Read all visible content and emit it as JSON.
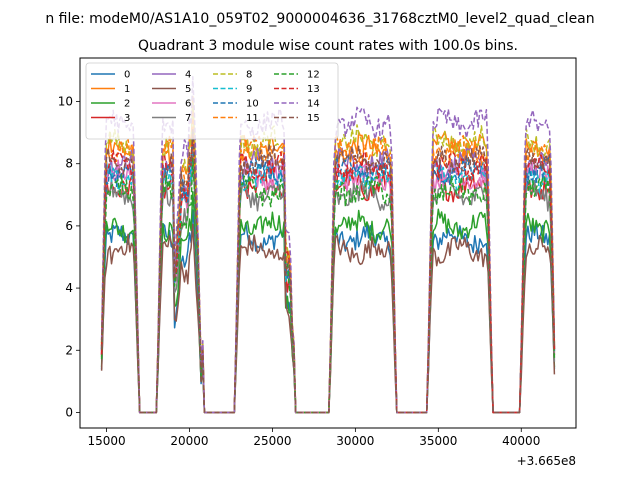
{
  "chart_data": {
    "type": "line",
    "suptitle": "n file: modeM0/AS1A10_059T02_9000004636_31768cztM0_level2_quad_clean",
    "title": "Quadrant 3 module wise count rates with 100.0s bins.",
    "xlabel": "",
    "ylabel": "",
    "x_offset_label": "+3.665e8",
    "xlim": [
      13400,
      43300
    ],
    "ylim": [
      -0.5,
      11.4
    ],
    "xticks": [
      15000,
      20000,
      25000,
      30000,
      35000,
      40000
    ],
    "yticks": [
      0,
      2,
      4,
      6,
      8,
      10
    ],
    "grid": false,
    "legend": {
      "position": "upper-left",
      "columns": 4
    },
    "x_units_note": "seconds, relative to offset 3.665e8",
    "bin_size_s": 100,
    "on_intervals": [
      [
        14700,
        16900
      ],
      [
        18100,
        20800
      ],
      [
        22800,
        26300
      ],
      [
        28500,
        32400
      ],
      [
        34400,
        38200
      ],
      [
        40000,
        42000
      ]
    ],
    "series": [
      {
        "name": "0",
        "color": "#1f77b4",
        "dashed": false,
        "level": 5.6
      },
      {
        "name": "1",
        "color": "#ff7f0e",
        "dashed": false,
        "level": 8.5
      },
      {
        "name": "2",
        "color": "#2ca02c",
        "dashed": false,
        "level": 6.0
      },
      {
        "name": "3",
        "color": "#d62728",
        "dashed": false,
        "level": 7.3
      },
      {
        "name": "4",
        "color": "#9467bd",
        "dashed": false,
        "level": 8.0
      },
      {
        "name": "5",
        "color": "#8c564b",
        "dashed": false,
        "level": 5.2
      },
      {
        "name": "6",
        "color": "#e377c2",
        "dashed": false,
        "level": 7.6
      },
      {
        "name": "7",
        "color": "#7f7f7f",
        "dashed": false,
        "level": 7.0
      },
      {
        "name": "8",
        "color": "#bcbd22",
        "dashed": true,
        "level": 8.7
      },
      {
        "name": "9",
        "color": "#17becf",
        "dashed": true,
        "level": 7.6
      },
      {
        "name": "10",
        "color": "#1f77b4",
        "dashed": true,
        "level": 7.8
      },
      {
        "name": "11",
        "color": "#ff7f0e",
        "dashed": true,
        "level": 8.4
      },
      {
        "name": "12",
        "color": "#2ca02c",
        "dashed": true,
        "level": 7.1
      },
      {
        "name": "13",
        "color": "#d62728",
        "dashed": true,
        "level": 7.9
      },
      {
        "name": "14",
        "color": "#9467bd",
        "dashed": true,
        "level": 9.3
      },
      {
        "name": "15",
        "color": "#8c564b",
        "dashed": true,
        "level": 8.1
      }
    ]
  }
}
